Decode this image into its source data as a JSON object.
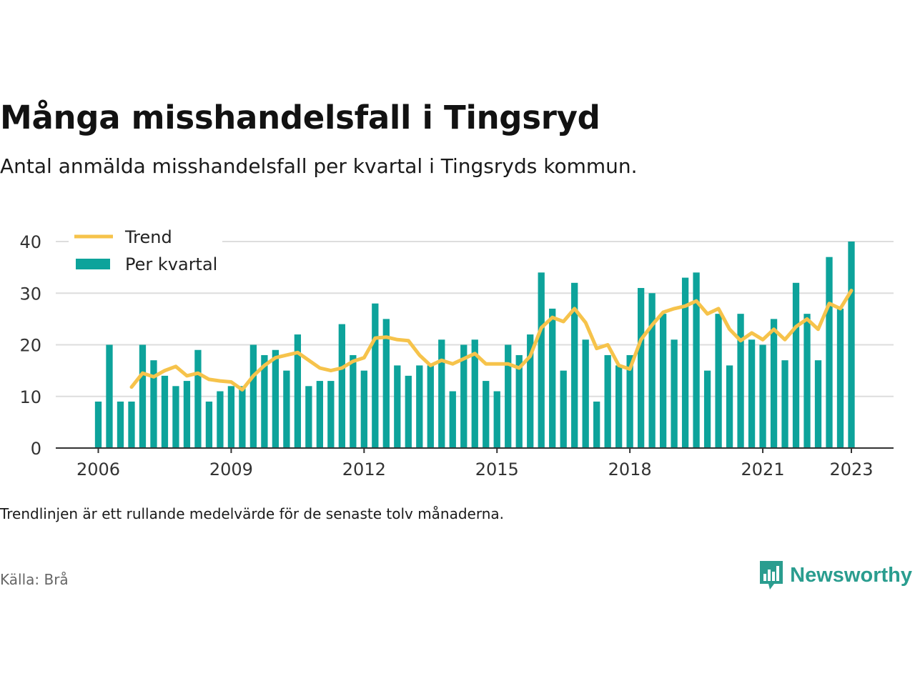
{
  "header": {
    "title": "Många misshandelsfall i Tingsryd",
    "subtitle": "Antal anmälda misshandelsfall per kvartal i Tingsryds kommun."
  },
  "footer": {
    "note": "Trendlinjen är ett rullande medelvärde för de senaste tolv månaderna.",
    "source": "Källa: Brå",
    "brand": "Newsworthy"
  },
  "colors": {
    "bar": "#0da39b",
    "trend": "#f6c34b",
    "grid": "#dddddd",
    "axis": "#333333",
    "brand": "#2a9d8f"
  },
  "icons": {
    "brand": "newsworthy-logo-icon"
  },
  "chart_data": {
    "type": "bar",
    "legend": {
      "position": "top-left",
      "entries": [
        "Trend",
        "Per kvartal"
      ]
    },
    "x_ticks": [
      "2006",
      "2009",
      "2012",
      "2015",
      "2018",
      "2021",
      "2023"
    ],
    "y_ticks": [
      0,
      10,
      20,
      30,
      40
    ],
    "ylim": [
      0,
      40
    ],
    "grid": true,
    "categories": [
      "2006 Q1",
      "2006 Q2",
      "2006 Q3",
      "2006 Q4",
      "2007 Q1",
      "2007 Q2",
      "2007 Q3",
      "2007 Q4",
      "2008 Q1",
      "2008 Q2",
      "2008 Q3",
      "2008 Q4",
      "2009 Q1",
      "2009 Q2",
      "2009 Q3",
      "2009 Q4",
      "2010 Q1",
      "2010 Q2",
      "2010 Q3",
      "2010 Q4",
      "2011 Q1",
      "2011 Q2",
      "2011 Q3",
      "2011 Q4",
      "2012 Q1",
      "2012 Q2",
      "2012 Q3",
      "2012 Q4",
      "2013 Q1",
      "2013 Q2",
      "2013 Q3",
      "2013 Q4",
      "2014 Q1",
      "2014 Q2",
      "2014 Q3",
      "2014 Q4",
      "2015 Q1",
      "2015 Q2",
      "2015 Q3",
      "2015 Q4",
      "2016 Q1",
      "2016 Q2",
      "2016 Q3",
      "2016 Q4",
      "2017 Q1",
      "2017 Q2",
      "2017 Q3",
      "2017 Q4",
      "2018 Q1",
      "2018 Q2",
      "2018 Q3",
      "2018 Q4",
      "2019 Q1",
      "2019 Q2",
      "2019 Q3",
      "2019 Q4",
      "2020 Q1",
      "2020 Q2",
      "2020 Q3",
      "2020 Q4",
      "2021 Q1",
      "2021 Q2",
      "2021 Q3",
      "2021 Q4",
      "2022 Q1",
      "2022 Q2",
      "2022 Q3",
      "2022 Q4",
      "2023 Q1"
    ],
    "series": [
      {
        "name": "Per kvartal",
        "type": "bar",
        "values": [
          9,
          20,
          9,
          9,
          20,
          17,
          14,
          12,
          13,
          19,
          9,
          11,
          12,
          12,
          20,
          18,
          19,
          15,
          22,
          12,
          13,
          13,
          24,
          18,
          15,
          28,
          25,
          16,
          14,
          16,
          16,
          21,
          11,
          20,
          21,
          13,
          11,
          20,
          18,
          22,
          34,
          27,
          15,
          32,
          21,
          9,
          18,
          16,
          18,
          31,
          30,
          26,
          21,
          33,
          34,
          15,
          26,
          16,
          26,
          21,
          20,
          25,
          17,
          32,
          26,
          17,
          37,
          27,
          40
        ]
      },
      {
        "name": "Trend",
        "type": "line",
        "values": [
          null,
          null,
          null,
          11.8,
          14.5,
          13.8,
          15.0,
          15.8,
          14.0,
          14.5,
          13.3,
          13.0,
          12.8,
          11.3,
          14.0,
          16.0,
          17.5,
          18.0,
          18.5,
          17.0,
          15.5,
          15.0,
          15.5,
          16.8,
          17.5,
          21.3,
          21.5,
          21.0,
          20.8,
          18.0,
          16.0,
          17.0,
          16.3,
          17.3,
          18.3,
          16.3,
          16.3,
          16.3,
          15.5,
          17.8,
          23.3,
          25.3,
          24.5,
          27.0,
          24.3,
          19.3,
          20.0,
          16.0,
          15.3,
          21.0,
          23.8,
          26.3,
          27.0,
          27.5,
          28.5,
          26.0,
          27.0,
          23.0,
          20.8,
          22.3,
          21.0,
          23.0,
          21.0,
          23.5,
          25.0,
          23.0,
          28.0,
          27.0,
          30.5
        ]
      }
    ]
  }
}
